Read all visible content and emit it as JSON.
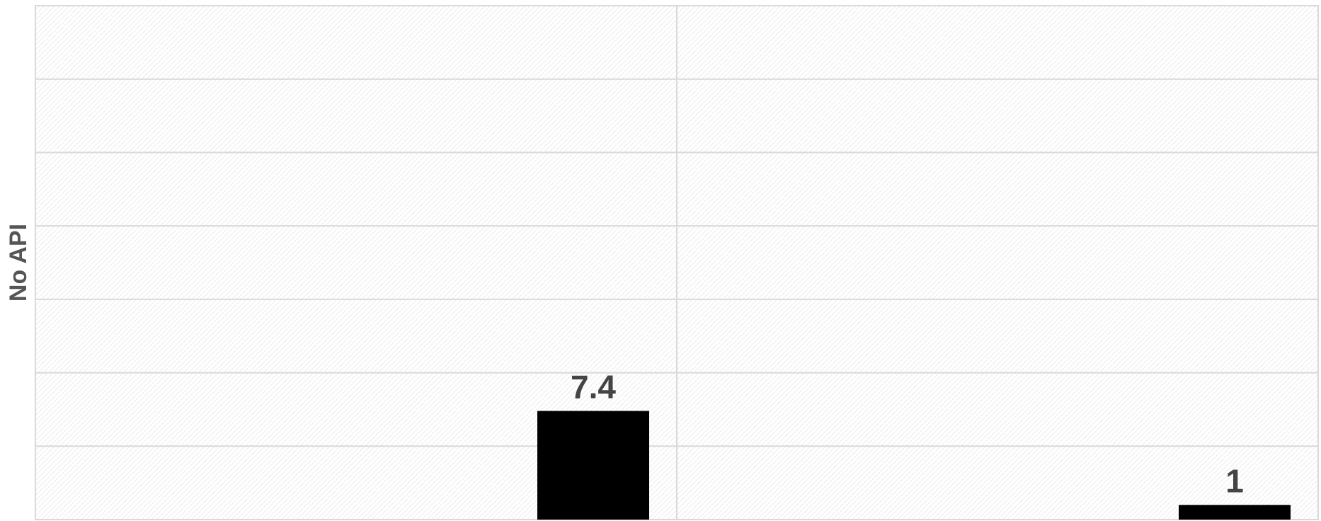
{
  "chart_data": {
    "type": "bar",
    "title": "",
    "xlabel": "",
    "ylabel": "No API",
    "categories": [
      "",
      ""
    ],
    "values": [
      7.4,
      1
    ],
    "data_labels": [
      "7.4",
      "1"
    ],
    "ylim": [
      0,
      35
    ],
    "y_gridlines": [
      0,
      5,
      10,
      15,
      20,
      25,
      30,
      35
    ],
    "x_group_count": 2,
    "grid": true,
    "legend": "none",
    "bar_position_in_group": "right",
    "colors": {
      "bar": "#000000",
      "grid": "#d9d9d9",
      "hatch": "#e6e6e6",
      "text": "#444444",
      "axis_label": "#555555"
    }
  }
}
